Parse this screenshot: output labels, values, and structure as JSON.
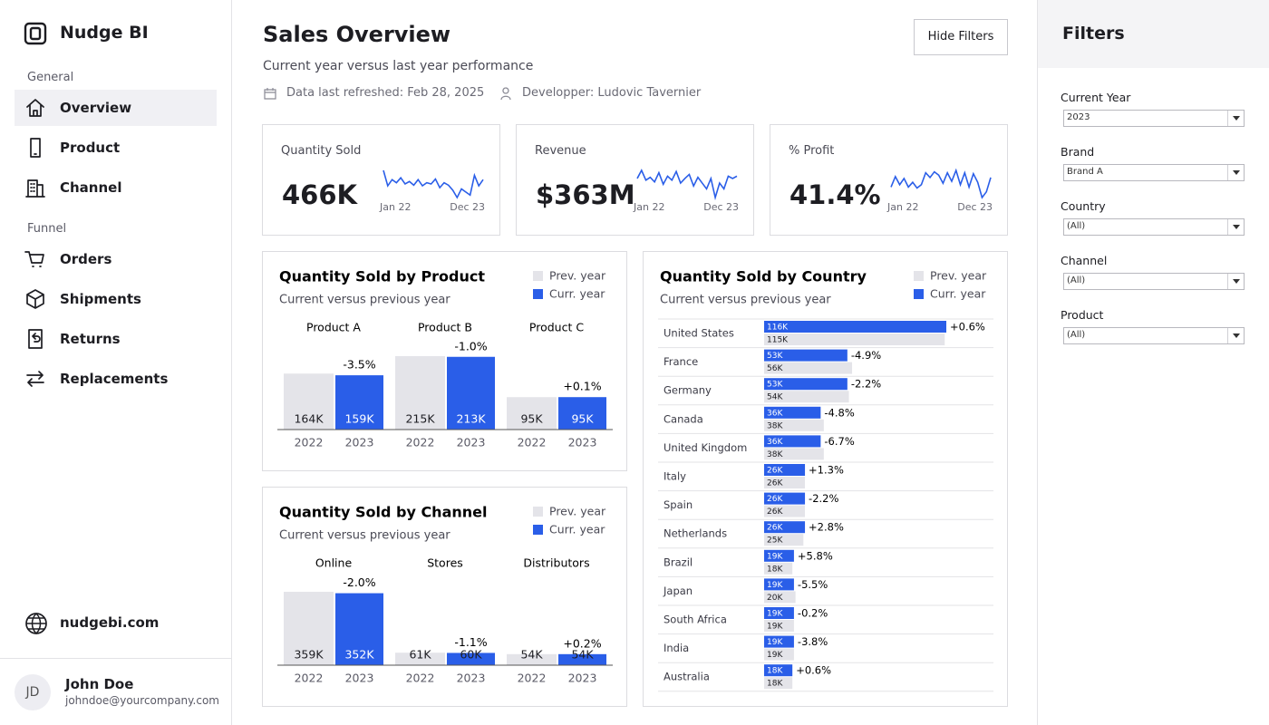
{
  "sidebar": {
    "brand": "Nudge BI",
    "sections": [
      {
        "title": "General",
        "items": [
          "Overview",
          "Product",
          "Channel"
        ]
      },
      {
        "title": "Funnel",
        "items": [
          "Orders",
          "Shipments",
          "Returns",
          "Replacements"
        ]
      }
    ],
    "link": "nudgebi.com",
    "user": {
      "initials": "JD",
      "name": "John Doe",
      "email": "johndoe@yourcompany.com"
    }
  },
  "header": {
    "title": "Sales Overview",
    "subtitle": "Current year versus last year performance",
    "refreshed": "Data last refreshed: Feb 28, 2025",
    "developer": "Developper: Ludovic Tavernier",
    "button": "Hide Filters"
  },
  "kpis": [
    {
      "label": "Quantity Sold",
      "value": "466K",
      "start": "Jan 22",
      "end": "Dec 23",
      "sparkline": [
        70,
        45,
        55,
        50,
        58,
        48,
        52,
        46,
        55,
        45,
        50,
        48,
        56,
        42,
        50,
        46,
        38,
        26,
        40,
        35,
        30,
        62,
        45,
        55
      ]
    },
    {
      "label": "Revenue",
      "value": "$363M",
      "start": "Jan 22",
      "end": "Dec 23",
      "sparkline": [
        58,
        72,
        55,
        60,
        52,
        68,
        48,
        62,
        55,
        70,
        50,
        58,
        65,
        45,
        60,
        50,
        40,
        58,
        25,
        50,
        40,
        62,
        58,
        62
      ]
    },
    {
      "label": "% Profit",
      "value": "41.4%",
      "start": "Jan 22",
      "end": "Dec 23",
      "sparkline": [
        40,
        62,
        45,
        58,
        40,
        50,
        38,
        45,
        70,
        60,
        72,
        65,
        48,
        70,
        52,
        75,
        45,
        70,
        40,
        68,
        50,
        18,
        30,
        60
      ]
    }
  ],
  "product_chart": {
    "title": "Quantity Sold by Product",
    "subtitle": "Current versus previous year",
    "legend": [
      "Prev. year",
      "Curr. year"
    ],
    "colors": [
      "#e4e4e9",
      "#2a5ee8"
    ],
    "groups": [
      {
        "name": "Product A",
        "years": [
          "2022",
          "2023"
        ],
        "values": [
          164,
          159
        ],
        "value_labels": [
          "164K",
          "159K"
        ],
        "change": "-3.5%"
      },
      {
        "name": "Product B",
        "years": [
          "2022",
          "2023"
        ],
        "values": [
          215,
          213
        ],
        "value_labels": [
          "215K",
          "213K"
        ],
        "change": "-1.0%"
      },
      {
        "name": "Product C",
        "years": [
          "2022",
          "2023"
        ],
        "values": [
          95,
          95
        ],
        "value_labels": [
          "95K",
          "95K"
        ],
        "change": "+0.1%"
      }
    ]
  },
  "channel_chart": {
    "title": "Quantity Sold by Channel",
    "subtitle": "Current versus previous year",
    "legend": [
      "Prev. year",
      "Curr. year"
    ],
    "colors": [
      "#e4e4e9",
      "#2a5ee8"
    ],
    "groups": [
      {
        "name": "Online",
        "years": [
          "2022",
          "2023"
        ],
        "values": [
          359,
          352
        ],
        "value_labels": [
          "359K",
          "352K"
        ],
        "change": "-2.0%"
      },
      {
        "name": "Stores",
        "years": [
          "2022",
          "2023"
        ],
        "values": [
          61,
          60
        ],
        "value_labels": [
          "61K",
          "60K"
        ],
        "change": "-1.1%"
      },
      {
        "name": "Distributors",
        "years": [
          "2022",
          "2023"
        ],
        "values": [
          54,
          54
        ],
        "value_labels": [
          "54K",
          "54K"
        ],
        "change": "+0.2%"
      }
    ]
  },
  "country_chart": {
    "title": "Quantity Sold by Country",
    "subtitle": "Current versus previous year",
    "legend": [
      "Prev. year",
      "Curr. year"
    ],
    "colors": [
      "#e4e4e9",
      "#2a5ee8"
    ],
    "rows": [
      {
        "name": "United States",
        "curr": 116,
        "curr_label": "116K",
        "prev": 115,
        "prev_label": "115K",
        "change": "+0.6%"
      },
      {
        "name": "France",
        "curr": 53,
        "curr_label": "53K",
        "prev": 56,
        "prev_label": "56K",
        "change": "-4.9%"
      },
      {
        "name": "Germany",
        "curr": 53,
        "curr_label": "53K",
        "prev": 54,
        "prev_label": "54K",
        "change": "-2.2%"
      },
      {
        "name": "Canada",
        "curr": 36,
        "curr_label": "36K",
        "prev": 38,
        "prev_label": "38K",
        "change": "-4.8%"
      },
      {
        "name": "United Kingdom",
        "curr": 36,
        "curr_label": "36K",
        "prev": 38,
        "prev_label": "38K",
        "change": "-6.7%"
      },
      {
        "name": "Italy",
        "curr": 26,
        "curr_label": "26K",
        "prev": 26,
        "prev_label": "26K",
        "change": "+1.3%"
      },
      {
        "name": "Spain",
        "curr": 26,
        "curr_label": "26K",
        "prev": 26,
        "prev_label": "26K",
        "change": "-2.2%"
      },
      {
        "name": "Netherlands",
        "curr": 26,
        "curr_label": "26K",
        "prev": 25,
        "prev_label": "25K",
        "change": "+2.8%"
      },
      {
        "name": "Brazil",
        "curr": 19,
        "curr_label": "19K",
        "prev": 18,
        "prev_label": "18K",
        "change": "+5.8%"
      },
      {
        "name": "Japan",
        "curr": 19,
        "curr_label": "19K",
        "prev": 20,
        "prev_label": "20K",
        "change": "-5.5%"
      },
      {
        "name": "South Africa",
        "curr": 19,
        "curr_label": "19K",
        "prev": 19,
        "prev_label": "19K",
        "change": "-0.2%"
      },
      {
        "name": "India",
        "curr": 19,
        "curr_label": "19K",
        "prev": 19,
        "prev_label": "19K",
        "change": "-3.8%"
      },
      {
        "name": "Australia",
        "curr": 18,
        "curr_label": "18K",
        "prev": 18,
        "prev_label": "18K",
        "change": "+0.6%"
      }
    ]
  },
  "filters": {
    "title": "Filters",
    "fields": [
      {
        "label": "Current Year",
        "value": "2023"
      },
      {
        "label": "Brand",
        "value": "Brand A"
      },
      {
        "label": "Country",
        "value": "(All)"
      },
      {
        "label": "Channel",
        "value": "(All)"
      },
      {
        "label": "Product",
        "value": "(All)"
      }
    ]
  }
}
